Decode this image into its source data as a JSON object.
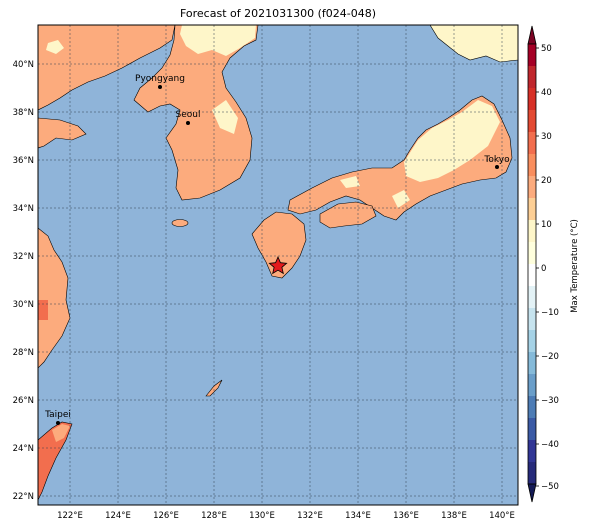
{
  "title": "Forecast of 2021031300 (f024-048)",
  "lat_labels": [
    "40°N",
    "38°N",
    "36°N",
    "34°N",
    "32°N",
    "30°N",
    "28°N",
    "26°N",
    "24°N",
    "22°N"
  ],
  "lon_labels": [
    "122°E",
    "124°E",
    "126°E",
    "128°E",
    "130°E",
    "132°E",
    "134°E",
    "136°E",
    "138°E",
    "140°E"
  ],
  "cities": [
    {
      "name": "Pyongyang"
    },
    {
      "name": "Seoul"
    },
    {
      "name": "Tokyo"
    },
    {
      "name": "Taipei"
    }
  ],
  "colorbar": {
    "label": "Max Temperature (°C)",
    "ticks": [
      "50",
      "40",
      "30",
      "20",
      "10",
      "0",
      "−10",
      "−20",
      "−30",
      "−40",
      "−50"
    ]
  },
  "colors": {
    "ocean": "#8fb4d9",
    "land_10_20": "#fcab7d",
    "land_0_10": "#fef6c9",
    "land_20_30": "#f26e4e",
    "marker": "#e31a1c"
  }
}
